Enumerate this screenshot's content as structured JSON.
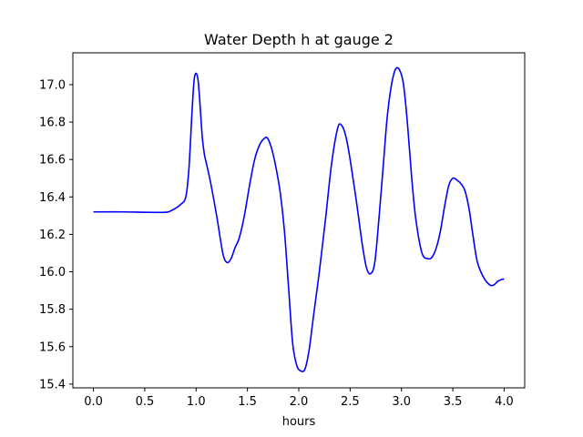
{
  "chart_data": {
    "type": "line",
    "title": "Water Depth h at gauge 2",
    "xlabel": "hours",
    "ylabel": "",
    "xlim": [
      -0.2,
      4.2
    ],
    "ylim": [
      15.38,
      17.17
    ],
    "grid": false,
    "legend": "none",
    "xticks": [
      0.0,
      0.5,
      1.0,
      1.5,
      2.0,
      2.5,
      3.0,
      3.5,
      4.0
    ],
    "xtick_labels": [
      "0.0",
      "0.5",
      "1.0",
      "1.5",
      "2.0",
      "2.5",
      "3.0",
      "3.5",
      "4.0"
    ],
    "yticks": [
      15.4,
      15.6,
      15.8,
      16.0,
      16.2,
      16.4,
      16.6,
      16.8,
      17.0
    ],
    "ytick_labels": [
      "15.4",
      "15.6",
      "15.8",
      "16.0",
      "16.2",
      "16.4",
      "16.6",
      "16.8",
      "17.0"
    ],
    "series": [
      {
        "color": "#0000ff",
        "x": [
          0.0,
          0.3,
          0.5,
          0.7,
          0.75,
          0.8,
          0.85,
          0.9,
          0.93,
          0.96,
          0.98,
          1.0,
          1.02,
          1.04,
          1.06,
          1.08,
          1.1,
          1.14,
          1.2,
          1.26,
          1.3,
          1.34,
          1.38,
          1.42,
          1.47,
          1.52,
          1.57,
          1.62,
          1.67,
          1.7,
          1.74,
          1.78,
          1.82,
          1.86,
          1.9,
          1.94,
          1.98,
          2.02,
          2.06,
          2.1,
          2.14,
          2.2,
          2.26,
          2.32,
          2.38,
          2.42,
          2.46,
          2.5,
          2.56,
          2.62,
          2.66,
          2.7,
          2.74,
          2.78,
          2.82,
          2.86,
          2.9,
          2.94,
          2.98,
          3.02,
          3.06,
          3.1,
          3.14,
          3.2,
          3.26,
          3.3,
          3.34,
          3.38,
          3.42,
          3.46,
          3.5,
          3.54,
          3.58,
          3.62,
          3.66,
          3.7,
          3.74,
          3.8,
          3.86,
          3.9,
          3.94,
          3.98,
          4.0
        ],
        "y": [
          16.32,
          16.32,
          16.318,
          16.318,
          16.325,
          16.34,
          16.36,
          16.4,
          16.55,
          16.85,
          17.02,
          17.06,
          17.02,
          16.88,
          16.72,
          16.63,
          16.58,
          16.48,
          16.3,
          16.1,
          16.05,
          16.07,
          16.13,
          16.18,
          16.3,
          16.46,
          16.6,
          16.68,
          16.715,
          16.71,
          16.65,
          16.55,
          16.42,
          16.22,
          15.92,
          15.62,
          15.5,
          15.47,
          15.48,
          15.58,
          15.75,
          16.0,
          16.28,
          16.58,
          16.77,
          16.78,
          16.72,
          16.6,
          16.38,
          16.14,
          16.02,
          15.99,
          16.05,
          16.28,
          16.55,
          16.82,
          16.99,
          17.08,
          17.08,
          17.0,
          16.78,
          16.5,
          16.28,
          16.1,
          16.07,
          16.08,
          16.13,
          16.22,
          16.35,
          16.46,
          16.5,
          16.49,
          16.47,
          16.43,
          16.33,
          16.18,
          16.05,
          15.97,
          15.93,
          15.93,
          15.95,
          15.96,
          15.96
        ]
      }
    ]
  }
}
